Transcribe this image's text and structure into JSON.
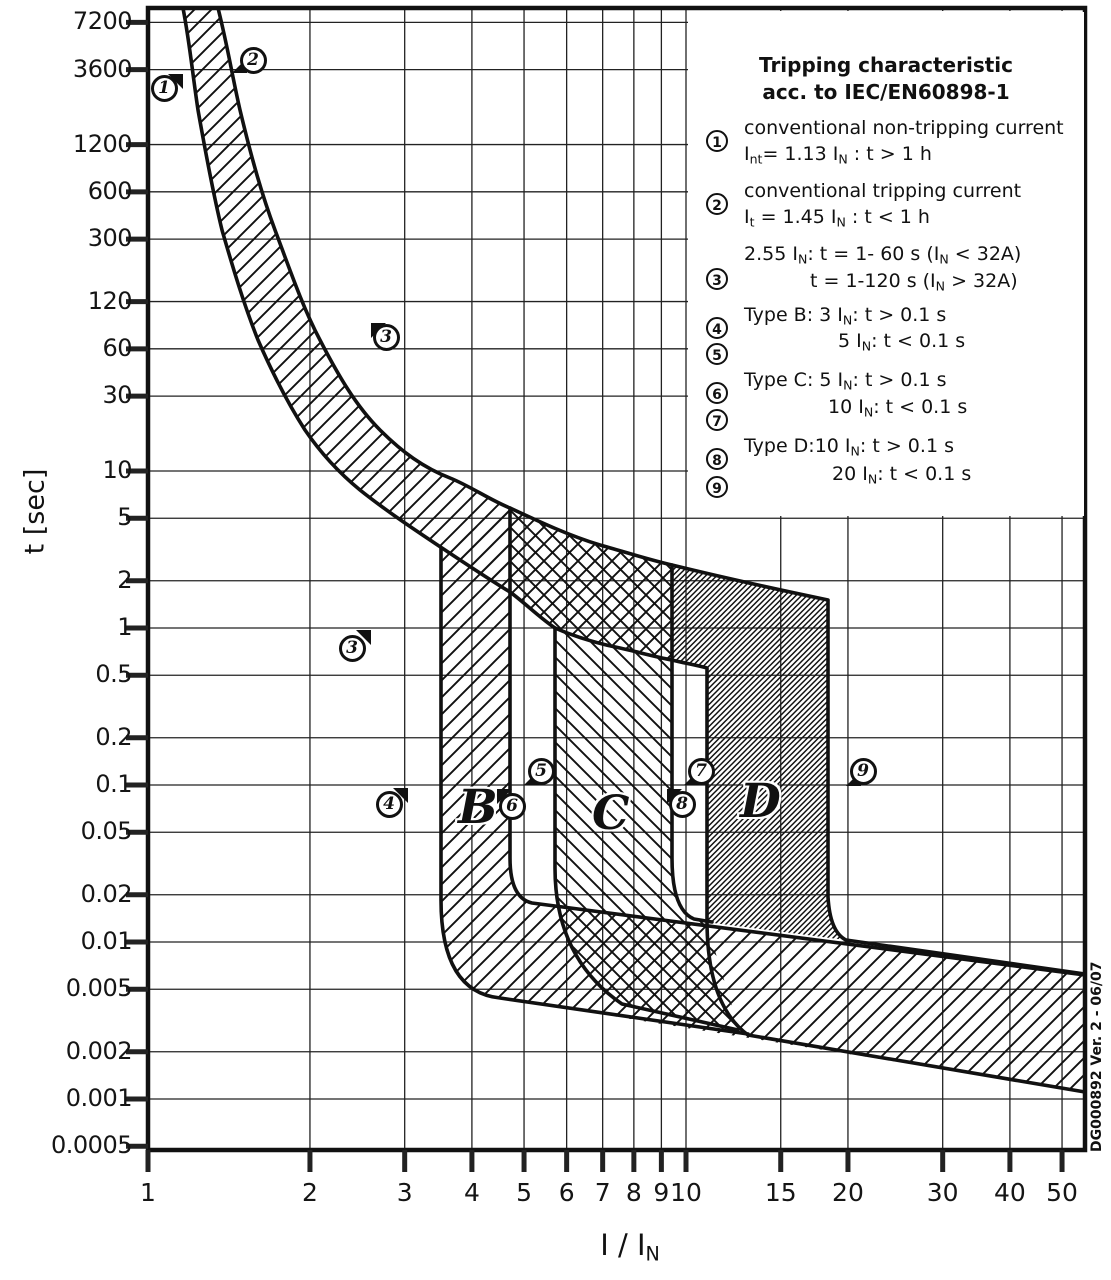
{
  "colors": {
    "ink": "#111111",
    "grid": "#3a3a3a",
    "background": "#ffffff"
  },
  "watermark": "DG000892 Ver. 2 - 06/07",
  "axes": {
    "y_title_parts": [
      {
        "t": "t [sec]"
      }
    ],
    "x_title_parts": [
      {
        "t": "I / I"
      },
      {
        "s": "N"
      }
    ],
    "y_ticks": [
      "7200",
      "3600",
      "1200",
      "600",
      "300",
      "120",
      "60",
      "30",
      "10",
      "5",
      "2",
      "1",
      "0.5",
      "0.2",
      "0.1",
      "0.05",
      "0.02",
      "0.01",
      "0.005",
      "0.002",
      "0.001",
      "0.0005"
    ],
    "x_ticks": [
      "1",
      "2",
      "3",
      "4",
      "5",
      "6",
      "7",
      "8",
      "9",
      "10",
      "15",
      "20",
      "30",
      "40",
      "50"
    ]
  },
  "legend": {
    "title_line1": "Tripping characteristic",
    "title_line2": "acc. to IEC/EN60898-1",
    "items": [
      {
        "num": "1",
        "lines": [
          {
            "indent": 0,
            "parts": [
              {
                "t": "conventional non-tripping current"
              }
            ]
          },
          {
            "indent": 0,
            "parts": [
              {
                "t": "I"
              },
              {
                "s": "nt"
              },
              {
                "t": "= 1.13 I"
              },
              {
                "s": "N"
              },
              {
                "t": " : t > 1 h"
              }
            ]
          }
        ]
      },
      {
        "num": "2",
        "lines": [
          {
            "indent": 0,
            "parts": [
              {
                "t": "conventional tripping current"
              }
            ]
          },
          {
            "indent": 0,
            "parts": [
              {
                "t": "I"
              },
              {
                "s": "t"
              },
              {
                "t": " = 1.45 I"
              },
              {
                "s": "N"
              },
              {
                "t": " : t < 1 h"
              }
            ]
          }
        ]
      },
      {
        "num": "3",
        "lines": [
          {
            "indent": 0,
            "parts": [
              {
                "t": "2.55 I"
              },
              {
                "s": "N"
              },
              {
                "t": ": t = 1- 60 s (I"
              },
              {
                "s": "N"
              },
              {
                "t": " < 32A)"
              }
            ]
          },
          {
            "indent": 66,
            "parts": [
              {
                "t": "t = 1-120 s (I"
              },
              {
                "s": "N"
              },
              {
                "t": " > 32A)"
              }
            ]
          }
        ]
      },
      {
        "num": "4",
        "lines": [
          {
            "indent": 0,
            "parts": [
              {
                "t": "Type B: 3 I"
              },
              {
                "s": "N"
              },
              {
                "t": ": t > 0.1 s"
              }
            ]
          }
        ]
      },
      {
        "num": "5",
        "lines": [
          {
            "indent": 94,
            "parts": [
              {
                "t": "5 I"
              },
              {
                "s": "N"
              },
              {
                "t": ": t < 0.1 s"
              }
            ]
          }
        ]
      },
      {
        "num": "6",
        "lines": [
          {
            "indent": 0,
            "parts": [
              {
                "t": "Type C: 5 I"
              },
              {
                "s": "N"
              },
              {
                "t": ": t > 0.1 s"
              }
            ]
          }
        ]
      },
      {
        "num": "7",
        "lines": [
          {
            "indent": 84,
            "parts": [
              {
                "t": "10 I"
              },
              {
                "s": "N"
              },
              {
                "t": ": t < 0.1 s"
              }
            ]
          }
        ]
      },
      {
        "num": "8",
        "lines": [
          {
            "indent": 0,
            "parts": [
              {
                "t": "Type D:10 I"
              },
              {
                "s": "N"
              },
              {
                "t": ": t > 0.1 s"
              }
            ]
          }
        ]
      },
      {
        "num": "9",
        "lines": [
          {
            "indent": 88,
            "parts": [
              {
                "t": "20 I"
              },
              {
                "s": "N"
              },
              {
                "t": ": t < 0.1 s"
              }
            ]
          }
        ]
      }
    ]
  },
  "band_letters": {
    "B": "B",
    "C": "C",
    "D": "D"
  },
  "markers": [
    "1",
    "2",
    "3",
    "3",
    "4",
    "5",
    "6",
    "7",
    "8",
    "9"
  ],
  "chart_data": {
    "type": "line",
    "title": "Tripping characteristic acc. to IEC/EN60898-1",
    "xlabel": "I / IN",
    "ylabel": "t [sec]",
    "x_scale": "log",
    "y_scale": "log",
    "xlim": [
      1,
      55
    ],
    "ylim": [
      0.0005,
      9000
    ],
    "x_ticks": [
      1,
      2,
      3,
      4,
      5,
      6,
      7,
      8,
      9,
      10,
      15,
      20,
      30,
      40,
      50
    ],
    "y_ticks": [
      7200,
      3600,
      1200,
      600,
      300,
      120,
      60,
      30,
      10,
      5,
      2,
      1,
      0.5,
      0.2,
      0.1,
      0.05,
      0.02,
      0.01,
      0.005,
      0.002,
      0.001,
      0.0005
    ],
    "grid": true,
    "legend_position": "top-right",
    "series": [
      {
        "name": "conventional non-tripping limit (1.13 IN), curve 1",
        "points": [
          [
            1.13,
            8500
          ],
          [
            1.2,
            2000
          ],
          [
            1.35,
            340
          ],
          [
            1.6,
            65
          ],
          [
            2.0,
            14
          ],
          [
            2.55,
            3.2
          ],
          [
            3.1,
            1.6
          ],
          [
            3.55,
            1.05
          ],
          [
            4.8,
            0.75
          ],
          [
            5.8,
            0.55
          ],
          [
            7.6,
            0.45
          ],
          [
            9.5,
            0.4
          ],
          [
            11.0,
            0.37
          ]
        ]
      },
      {
        "name": "conventional tripping limit (1.45 IN), curve 2",
        "points": [
          [
            1.45,
            8500
          ],
          [
            1.65,
            2000
          ],
          [
            2.0,
            340
          ],
          [
            2.5,
            65
          ],
          [
            3.2,
            18
          ],
          [
            4.1,
            4.5
          ],
          [
            4.8,
            5.8
          ],
          [
            6.0,
            2.9
          ],
          [
            7.0,
            2.0
          ],
          [
            9.5,
            1.55
          ],
          [
            13.0,
            1.2
          ],
          [
            18.7,
            1.05
          ]
        ]
      },
      {
        "name": "Type B instantaneous band (3-5 IN)",
        "x_range": [
          3.55,
          4.77
        ],
        "t_above": 0.1,
        "t_trip_range": [
          0.004,
          0.035
        ]
      },
      {
        "name": "Type C instantaneous band (5-10 IN)",
        "x_range": [
          5.78,
          9.54
        ],
        "t_above": 0.1,
        "t_trip_range": [
          0.004,
          0.035
        ]
      },
      {
        "name": "Type D instantaneous band (10-20 IN)",
        "x_range": [
          10.9,
          18.7
        ],
        "t_above": 0.1,
        "t_trip_range": [
          0.004,
          0.035
        ]
      },
      {
        "name": "high-current magnetic trip band upper limit",
        "points": [
          [
            4.8,
            0.034
          ],
          [
            18.7,
            0.019
          ],
          [
            55,
            0.0063
          ]
        ]
      },
      {
        "name": "high-current magnetic trip band lower limit",
        "points": [
          [
            3.55,
            0.02
          ],
          [
            4.5,
            0.0044
          ],
          [
            55,
            0.0011
          ]
        ]
      }
    ],
    "annotations": [
      {
        "label": "1",
        "x": 1.13,
        "t": 3600
      },
      {
        "label": "2",
        "x": 1.45,
        "t": 3600
      },
      {
        "label": "3",
        "x": 2.9,
        "t": 60
      },
      {
        "label": "3",
        "x": 2.55,
        "t": 1
      },
      {
        "label": "4",
        "x": 2.85,
        "t": 0.08
      },
      {
        "label": "5",
        "x": 5.4,
        "t": 0.11
      },
      {
        "label": "6",
        "x": 4.8,
        "t": 0.08
      },
      {
        "label": "7",
        "x": 10.6,
        "t": 0.11
      },
      {
        "label": "8",
        "x": 9.8,
        "t": 0.08
      },
      {
        "label": "9",
        "x": 21.5,
        "t": 0.11
      },
      {
        "label": "B",
        "x": 4.1,
        "t": 0.08
      },
      {
        "label": "C",
        "x": 7.3,
        "t": 0.08
      },
      {
        "label": "D",
        "x": 13.8,
        "t": 0.085
      }
    ]
  }
}
